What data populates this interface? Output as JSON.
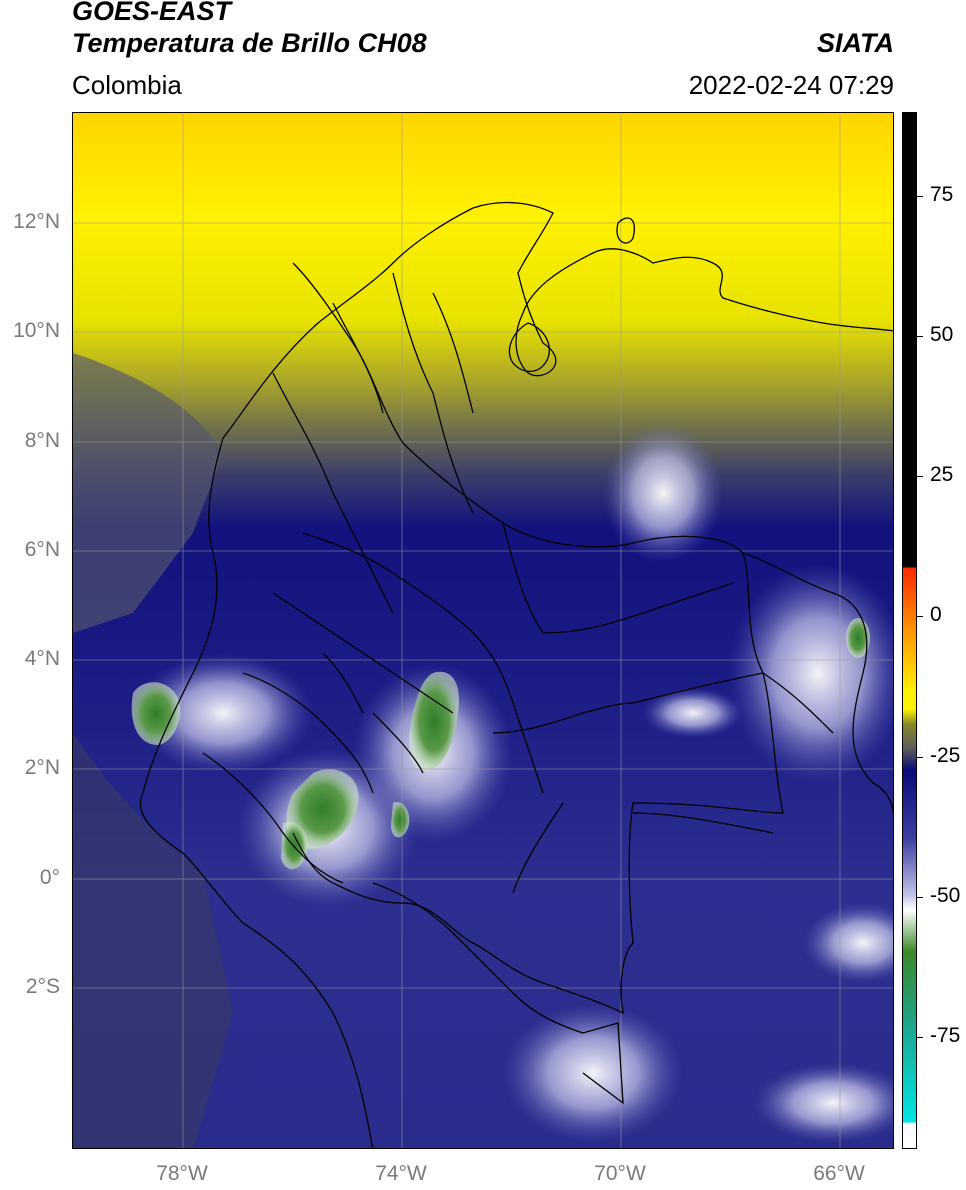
{
  "header": {
    "satellite": "GOES-EAST",
    "product": "Temperatura de Brillo CH08",
    "region": "Colombia",
    "organization": "SIATA",
    "timestamp": "2022-02-24 07:29"
  },
  "map": {
    "lat_labels": [
      "12°N",
      "10°N",
      "8°N",
      "6°N",
      "4°N",
      "2°N",
      "0°",
      "2°S"
    ],
    "lon_labels": [
      "78°W",
      "74°W",
      "70°W",
      "66°W"
    ],
    "lat_values": [
      12,
      10,
      8,
      6,
      4,
      2,
      0,
      -2
    ],
    "lon_values": [
      -78,
      -74,
      -70,
      -66
    ],
    "extent": {
      "lon_min": -80,
      "lon_max": -65,
      "lat_min": -4.3,
      "lat_max": 14.0
    }
  },
  "colorbar": {
    "ticks": [
      "75",
      "50",
      "25",
      "0",
      "-25",
      "-50",
      "-75"
    ],
    "tick_values": [
      75,
      50,
      25,
      0,
      -25,
      -50,
      -75
    ],
    "range": [
      -95,
      90
    ],
    "colors": {
      "black": "#000000",
      "red": "#ff2a00",
      "orange": "#ff9500",
      "yellow": "#fff200",
      "olive": "#8c8a2a",
      "gray": "#5a5a5a",
      "navy": "#0b0a7a",
      "blue": "#3b3ea0",
      "lavender": "#bfc0e6",
      "white": "#ffffff",
      "green": "#3d8a2a",
      "teal": "#1fa58c",
      "cyan": "#00e5e5"
    }
  }
}
